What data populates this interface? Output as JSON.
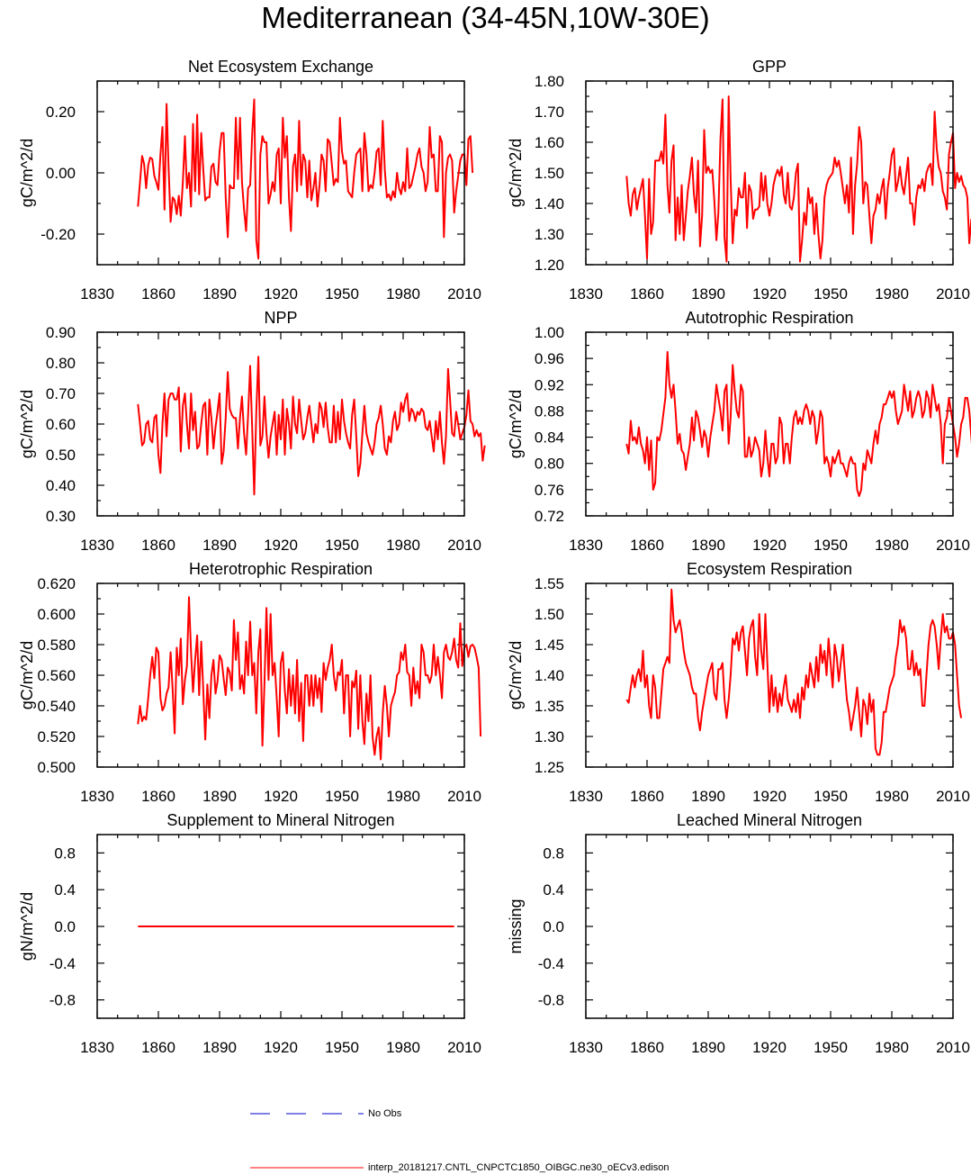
{
  "page": {
    "title": "Mediterranean (34-45N,10W-30E)"
  },
  "legend": [
    {
      "label": "No Obs",
      "color": "#0000cc",
      "style": "dashed"
    },
    {
      "label": "interp_20181217.CNTL_CNPCTC1850_OIBGC.ne30_oECv3.edison",
      "color": "#ff0000",
      "style": "solid"
    }
  ],
  "series_color": "#ff0000",
  "chart_data": [
    {
      "type": "line",
      "title": "Net Ecosystem Exchange",
      "ylabel": "gC/m^2/d",
      "xlim": [
        1830,
        2010
      ],
      "ylim": [
        -0.3,
        0.3
      ],
      "xticks": [
        "1830",
        "1860",
        "1890",
        "1920",
        "1950",
        "1980",
        "2010"
      ],
      "yticks": [
        -0.2,
        0.0,
        0.2
      ],
      "ytick_labels": [
        "-0.20",
        "0.00",
        "0.20"
      ],
      "x_start": 1850,
      "values": [
        -0.11,
        -0.03,
        0.055,
        0.03,
        -0.05,
        0.025,
        0.05,
        0.045,
        -0.01,
        -0.03,
        -0.055,
        0.06,
        0.15,
        -0.12,
        0.225,
        0.02,
        -0.16,
        -0.08,
        -0.09,
        -0.135,
        -0.075,
        -0.14,
        -0.03,
        0.12,
        -0.05,
        0.0,
        -0.11,
        0.16,
        -0.06,
        0.19,
        -0.07,
        0.13,
        0.01,
        -0.09,
        -0.08,
        -0.08,
        0.02,
        0.03,
        -0.03,
        -0.04,
        0.07,
        0.13,
        0.13,
        -0.08,
        -0.21,
        -0.04,
        -0.05,
        -0.05,
        0.18,
        -0.02,
        0.18,
        -0.03,
        -0.12,
        -0.19,
        -0.05,
        -0.04,
        0.13,
        0.24,
        -0.22,
        -0.28,
        0.06,
        0.12,
        0.1,
        0.1,
        -0.1,
        -0.07,
        -0.03,
        -0.06,
        0.06,
        0.08,
        -0.1,
        0.18,
        0.05,
        0.12,
        -0.08,
        -0.19,
        0.02,
        0.06,
        -0.06,
        0.17,
        -0.04,
        0.06,
        0.04,
        -0.08,
        0.04,
        -0.09,
        -0.05,
        0.0,
        -0.11,
        -0.04,
        0.06,
        0.04,
        -0.06,
        0.11,
        0.1,
        0.03,
        -0.04,
        -0.02,
        -0.03,
        0.18,
        0.07,
        0.03,
        0.04,
        -0.06,
        -0.07,
        -0.08,
        0.0,
        0.06,
        0.07,
        0.08,
        -0.06,
        0.13,
        0.06,
        -0.06,
        -0.04,
        -0.05,
        0.0,
        0.07,
        0.08,
        -0.04,
        0.17,
        0.01,
        -0.08,
        -0.07,
        -0.09,
        -0.06,
        -0.08,
        0.0,
        -0.05,
        -0.07,
        -0.03,
        -0.06,
        0.08,
        -0.05,
        -0.04,
        -0.01,
        0.02,
        0.06,
        0.08,
        0.02,
        0.0,
        -0.06,
        -0.03,
        0.15,
        0.05,
        0.06,
        -0.06,
        -0.06,
        0.12,
        0.1,
        -0.21,
        0.0,
        0.05,
        0.06,
        0.04,
        -0.13,
        -0.06,
        -0.01,
        0.04,
        0.06,
        0.06,
        -0.04,
        0.11,
        0.12,
        0.0
      ]
    },
    {
      "type": "line",
      "title": "GPP",
      "ylabel": "gC/m^2/d",
      "xlim": [
        1830,
        2010
      ],
      "ylim": [
        1.2,
        1.8
      ],
      "xticks": [
        "1830",
        "1860",
        "1890",
        "1920",
        "1950",
        "1980",
        "2010"
      ],
      "yticks": [
        1.2,
        1.3,
        1.4,
        1.5,
        1.6,
        1.7,
        1.8
      ],
      "ytick_labels": [
        "1.20",
        "1.30",
        "1.40",
        "1.50",
        "1.60",
        "1.70",
        "1.80"
      ],
      "x_start": 1850,
      "values": [
        1.49,
        1.4,
        1.36,
        1.43,
        1.45,
        1.38,
        1.42,
        1.45,
        1.48,
        1.36,
        1.22,
        1.48,
        1.3,
        1.34,
        1.54,
        1.54,
        1.54,
        1.57,
        1.53,
        1.69,
        1.46,
        1.37,
        1.54,
        1.59,
        1.28,
        1.42,
        1.3,
        1.46,
        1.28,
        1.36,
        1.44,
        1.49,
        1.55,
        1.43,
        1.37,
        1.54,
        1.26,
        1.36,
        1.64,
        1.5,
        1.52,
        1.5,
        1.51,
        1.41,
        1.28,
        1.37,
        1.61,
        1.74,
        1.29,
        1.21,
        1.75,
        1.48,
        1.27,
        1.38,
        1.36,
        1.45,
        1.42,
        1.42,
        1.5,
        1.32,
        1.46,
        1.44,
        1.35,
        1.38,
        1.38,
        1.39,
        1.5,
        1.41,
        1.49,
        1.4,
        1.36,
        1.4,
        1.46,
        1.49,
        1.51,
        1.49,
        1.52,
        1.43,
        1.4,
        1.5,
        1.39,
        1.38,
        1.42,
        1.5,
        1.53,
        1.21,
        1.28,
        1.37,
        1.33,
        1.45,
        1.4,
        1.42,
        1.3,
        1.4,
        1.3,
        1.22,
        1.28,
        1.42,
        1.46,
        1.48,
        1.49,
        1.5,
        1.55,
        1.52,
        1.54,
        1.5,
        1.45,
        1.4,
        1.46,
        1.37,
        1.55,
        1.3,
        1.46,
        1.53,
        1.65,
        1.6,
        1.4,
        1.47,
        1.46,
        1.36,
        1.27,
        1.36,
        1.38,
        1.43,
        1.4,
        1.45,
        1.48,
        1.35,
        1.45,
        1.5,
        1.56,
        1.58,
        1.44,
        1.47,
        1.52,
        1.46,
        1.43,
        1.49,
        1.55,
        1.4,
        1.4,
        1.33,
        1.42,
        1.46,
        1.45,
        1.48,
        1.44,
        1.5,
        1.52,
        1.53,
        1.46,
        1.7,
        1.58,
        1.52,
        1.5,
        1.44,
        1.42,
        1.38,
        1.56,
        1.6,
        1.63,
        1.45,
        1.5,
        1.47,
        1.49,
        1.46,
        1.45,
        1.42,
        1.27,
        1.35
      ]
    },
    {
      "type": "line",
      "title": "NPP",
      "ylabel": "gC/m^2/d",
      "xlim": [
        1830,
        2010
      ],
      "ylim": [
        0.3,
        0.9
      ],
      "xticks": [
        "1830",
        "1860",
        "1890",
        "1920",
        "1950",
        "1980",
        "2010"
      ],
      "yticks": [
        0.3,
        0.4,
        0.5,
        0.6,
        0.7,
        0.8,
        0.9
      ],
      "ytick_labels": [
        "0.30",
        "0.40",
        "0.50",
        "0.60",
        "0.70",
        "0.80",
        "0.90"
      ],
      "x_start": 1850,
      "values": [
        0.665,
        0.6,
        0.53,
        0.54,
        0.6,
        0.61,
        0.55,
        0.54,
        0.62,
        0.63,
        0.5,
        0.44,
        0.6,
        0.7,
        0.56,
        0.68,
        0.7,
        0.7,
        0.68,
        0.68,
        0.72,
        0.51,
        0.66,
        0.7,
        0.6,
        0.52,
        0.7,
        0.58,
        0.64,
        0.52,
        0.53,
        0.6,
        0.66,
        0.67,
        0.5,
        0.68,
        0.62,
        0.52,
        0.59,
        0.64,
        0.7,
        0.47,
        0.51,
        0.62,
        0.77,
        0.65,
        0.63,
        0.62,
        0.62,
        0.52,
        0.62,
        0.69,
        0.57,
        0.5,
        0.63,
        0.79,
        0.58,
        0.37,
        0.64,
        0.82,
        0.53,
        0.56,
        0.69,
        0.57,
        0.49,
        0.56,
        0.6,
        0.64,
        0.5,
        0.63,
        0.55,
        0.68,
        0.5,
        0.65,
        0.6,
        0.52,
        0.69,
        0.6,
        0.57,
        0.68,
        0.61,
        0.55,
        0.57,
        0.62,
        0.66,
        0.6,
        0.54,
        0.6,
        0.57,
        0.67,
        0.65,
        0.59,
        0.67,
        0.59,
        0.54,
        0.54,
        0.66,
        0.54,
        0.64,
        0.55,
        0.68,
        0.61,
        0.57,
        0.54,
        0.52,
        0.63,
        0.68,
        0.56,
        0.43,
        0.47,
        0.57,
        0.66,
        0.57,
        0.54,
        0.52,
        0.5,
        0.54,
        0.6,
        0.62,
        0.66,
        0.6,
        0.52,
        0.5,
        0.56,
        0.54,
        0.61,
        0.64,
        0.58,
        0.6,
        0.67,
        0.64,
        0.68,
        0.7,
        0.61,
        0.65,
        0.64,
        0.61,
        0.64,
        0.63,
        0.65,
        0.64,
        0.59,
        0.58,
        0.61,
        0.56,
        0.51,
        0.61,
        0.55,
        0.64,
        0.54,
        0.47,
        0.56,
        0.78,
        0.68,
        0.57,
        0.56,
        0.64,
        0.6,
        0.55,
        0.57,
        0.59,
        0.63,
        0.71,
        0.61,
        0.6,
        0.56,
        0.58,
        0.56,
        0.57,
        0.48,
        0.53
      ]
    },
    {
      "type": "line",
      "title": "Autotrophic Respiration",
      "ylabel": "gC/m^2/d",
      "xlim": [
        1830,
        2010
      ],
      "ylim": [
        0.72,
        1.0
      ],
      "xticks": [
        "1830",
        "1860",
        "1890",
        "1920",
        "1950",
        "1980",
        "2010"
      ],
      "yticks": [
        0.72,
        0.76,
        0.8,
        0.84,
        0.88,
        0.92,
        0.96,
        1.0
      ],
      "ytick_labels": [
        "0.72",
        "0.76",
        "0.80",
        "0.84",
        "0.88",
        "0.92",
        "0.96",
        "1.00"
      ],
      "x_start": 1850,
      "values": [
        0.83,
        0.815,
        0.865,
        0.835,
        0.84,
        0.83,
        0.855,
        0.83,
        0.82,
        0.8,
        0.84,
        0.79,
        0.835,
        0.76,
        0.77,
        0.84,
        0.835,
        0.85,
        0.875,
        0.9,
        0.97,
        0.92,
        0.9,
        0.92,
        0.88,
        0.83,
        0.845,
        0.82,
        0.815,
        0.79,
        0.81,
        0.83,
        0.87,
        0.835,
        0.88,
        0.87,
        0.85,
        0.825,
        0.85,
        0.84,
        0.81,
        0.84,
        0.86,
        0.88,
        0.92,
        0.9,
        0.88,
        0.85,
        0.91,
        0.92,
        0.83,
        0.87,
        0.95,
        0.91,
        0.88,
        0.87,
        0.92,
        0.91,
        0.81,
        0.81,
        0.84,
        0.81,
        0.82,
        0.84,
        0.83,
        0.82,
        0.78,
        0.8,
        0.85,
        0.81,
        0.78,
        0.83,
        0.83,
        0.8,
        0.81,
        0.87,
        0.86,
        0.8,
        0.83,
        0.83,
        0.8,
        0.84,
        0.87,
        0.88,
        0.86,
        0.87,
        0.86,
        0.88,
        0.89,
        0.88,
        0.86,
        0.88,
        0.87,
        0.83,
        0.85,
        0.88,
        0.87,
        0.8,
        0.81,
        0.8,
        0.78,
        0.81,
        0.8,
        0.81,
        0.82,
        0.8,
        0.8,
        0.79,
        0.78,
        0.8,
        0.81,
        0.8,
        0.8,
        0.76,
        0.75,
        0.76,
        0.8,
        0.79,
        0.82,
        0.81,
        0.8,
        0.83,
        0.85,
        0.83,
        0.86,
        0.87,
        0.89,
        0.89,
        0.9,
        0.91,
        0.9,
        0.91,
        0.88,
        0.86,
        0.87,
        0.88,
        0.92,
        0.9,
        0.88,
        0.91,
        0.87,
        0.88,
        0.9,
        0.91,
        0.9,
        0.87,
        0.88,
        0.91,
        0.9,
        0.87,
        0.92,
        0.9,
        0.88,
        0.89,
        0.86,
        0.8,
        0.86,
        0.87,
        0.9,
        0.88,
        0.86,
        0.84,
        0.81,
        0.83,
        0.86,
        0.87,
        0.9,
        0.9,
        0.88,
        0.84,
        0.8,
        0.78
      ]
    },
    {
      "type": "line",
      "title": "Heterotrophic Respiration",
      "ylabel": "gC/m^2/d",
      "xlim": [
        1830,
        2010
      ],
      "ylim": [
        0.5,
        0.62
      ],
      "xticks": [
        "1830",
        "1860",
        "1890",
        "1920",
        "1950",
        "1980",
        "2010"
      ],
      "yticks": [
        0.5,
        0.52,
        0.54,
        0.56,
        0.58,
        0.6,
        0.62
      ],
      "ytick_labels": [
        "0.500",
        "0.520",
        "0.540",
        "0.560",
        "0.580",
        "0.600",
        "0.620"
      ],
      "x_start": 1850,
      "values": [
        0.528,
        0.54,
        0.53,
        0.533,
        0.531,
        0.545,
        0.56,
        0.572,
        0.558,
        0.578,
        0.575,
        0.545,
        0.537,
        0.54,
        0.548,
        0.552,
        0.575,
        0.55,
        0.522,
        0.578,
        0.56,
        0.584,
        0.541,
        0.557,
        0.566,
        0.611,
        0.575,
        0.549,
        0.57,
        0.586,
        0.547,
        0.582,
        0.55,
        0.518,
        0.554,
        0.532,
        0.56,
        0.57,
        0.548,
        0.556,
        0.573,
        0.57,
        0.558,
        0.547,
        0.565,
        0.562,
        0.55,
        0.596,
        0.57,
        0.588,
        0.551,
        0.56,
        0.548,
        0.582,
        0.56,
        0.595,
        0.56,
        0.568,
        0.535,
        0.575,
        0.59,
        0.514,
        0.555,
        0.604,
        0.557,
        0.6,
        0.56,
        0.568,
        0.545,
        0.52,
        0.568,
        0.575,
        0.55,
        0.535,
        0.564,
        0.54,
        0.56,
        0.535,
        0.57,
        0.53,
        0.555,
        0.517,
        0.56,
        0.56,
        0.54,
        0.56,
        0.54,
        0.56,
        0.545,
        0.558,
        0.536,
        0.568,
        0.557,
        0.565,
        0.57,
        0.58,
        0.56,
        0.55,
        0.562,
        0.56,
        0.57,
        0.535,
        0.56,
        0.56,
        0.52,
        0.556,
        0.552,
        0.563,
        0.525,
        0.56,
        0.53,
        0.515,
        0.548,
        0.53,
        0.56,
        0.52,
        0.508,
        0.52,
        0.526,
        0.505,
        0.535,
        0.553,
        0.54,
        0.52,
        0.54,
        0.545,
        0.549,
        0.56,
        0.562,
        0.575,
        0.57,
        0.58,
        0.562,
        0.56,
        0.54,
        0.565,
        0.548,
        0.556,
        0.545,
        0.58,
        0.575,
        0.56,
        0.56,
        0.555,
        0.56,
        0.58,
        0.56,
        0.572,
        0.56,
        0.545,
        0.575,
        0.58,
        0.572,
        0.57,
        0.575,
        0.584,
        0.57,
        0.565,
        0.594,
        0.566,
        0.578,
        0.58,
        0.572,
        0.579,
        0.58,
        0.578,
        0.572,
        0.565,
        0.52
      ]
    },
    {
      "type": "line",
      "title": "Ecosystem Respiration",
      "ylabel": "gC/m^2/d",
      "xlim": [
        1830,
        2010
      ],
      "ylim": [
        1.25,
        1.55
      ],
      "xticks": [
        "1830",
        "1860",
        "1890",
        "1920",
        "1950",
        "1980",
        "2010"
      ],
      "yticks": [
        1.25,
        1.3,
        1.35,
        1.4,
        1.45,
        1.5,
        1.55
      ],
      "ytick_labels": [
        "1.25",
        "1.30",
        "1.35",
        "1.40",
        "1.45",
        "1.50",
        "1.55"
      ],
      "x_start": 1850,
      "values": [
        1.36,
        1.355,
        1.38,
        1.4,
        1.38,
        1.4,
        1.41,
        1.39,
        1.44,
        1.38,
        1.4,
        1.35,
        1.33,
        1.4,
        1.38,
        1.33,
        1.33,
        1.37,
        1.41,
        1.42,
        1.43,
        1.42,
        1.54,
        1.49,
        1.47,
        1.48,
        1.49,
        1.47,
        1.44,
        1.42,
        1.41,
        1.4,
        1.38,
        1.37,
        1.37,
        1.33,
        1.31,
        1.34,
        1.36,
        1.38,
        1.4,
        1.41,
        1.42,
        1.37,
        1.36,
        1.41,
        1.41,
        1.42,
        1.36,
        1.33,
        1.36,
        1.4,
        1.46,
        1.45,
        1.47,
        1.44,
        1.47,
        1.48,
        1.44,
        1.4,
        1.46,
        1.48,
        1.49,
        1.43,
        1.4,
        1.5,
        1.44,
        1.41,
        1.5,
        1.42,
        1.34,
        1.4,
        1.35,
        1.38,
        1.34,
        1.37,
        1.35,
        1.38,
        1.4,
        1.36,
        1.35,
        1.34,
        1.36,
        1.34,
        1.37,
        1.33,
        1.38,
        1.36,
        1.4,
        1.38,
        1.42,
        1.4,
        1.38,
        1.43,
        1.39,
        1.45,
        1.42,
        1.44,
        1.4,
        1.46,
        1.42,
        1.38,
        1.45,
        1.43,
        1.39,
        1.42,
        1.45,
        1.4,
        1.36,
        1.34,
        1.31,
        1.33,
        1.35,
        1.38,
        1.34,
        1.3,
        1.36,
        1.35,
        1.32,
        1.37,
        1.34,
        1.36,
        1.28,
        1.27,
        1.27,
        1.29,
        1.34,
        1.34,
        1.36,
        1.38,
        1.39,
        1.4,
        1.43,
        1.45,
        1.49,
        1.47,
        1.48,
        1.46,
        1.41,
        1.41,
        1.44,
        1.4,
        1.42,
        1.4,
        1.41,
        1.35,
        1.35,
        1.4,
        1.45,
        1.48,
        1.49,
        1.48,
        1.45,
        1.41,
        1.46,
        1.5,
        1.47,
        1.48,
        1.46,
        1.46,
        1.47,
        1.45,
        1.4,
        1.35,
        1.33
      ]
    },
    {
      "type": "line",
      "title": "Supplement to Mineral Nitrogen",
      "ylabel": "gN/m^2/d",
      "xlim": [
        1830,
        2010
      ],
      "ylim": [
        -1.0,
        1.0
      ],
      "xticks": [
        "1830",
        "1860",
        "1890",
        "1920",
        "1950",
        "1980",
        "2010"
      ],
      "yticks": [
        -0.8,
        -0.4,
        0.0,
        0.4,
        0.8
      ],
      "ytick_labels": [
        "-0.8",
        "-0.4",
        "0.0",
        "0.4",
        "0.8"
      ],
      "x_start": 1850,
      "x_end": 2005,
      "constant_value": 0.0
    },
    {
      "type": "line",
      "title": "Leached Mineral Nitrogen",
      "ylabel": "missing",
      "xlim": [
        1830,
        2010
      ],
      "ylim": [
        -1.0,
        1.0
      ],
      "xticks": [
        "1830",
        "1860",
        "1890",
        "1920",
        "1950",
        "1980",
        "2010"
      ],
      "yticks": [
        -0.8,
        -0.4,
        0.0,
        0.4,
        0.8
      ],
      "ytick_labels": [
        "-0.8",
        "-0.4",
        "0.0",
        "0.4",
        "0.8"
      ],
      "x_start": null,
      "values": []
    }
  ]
}
